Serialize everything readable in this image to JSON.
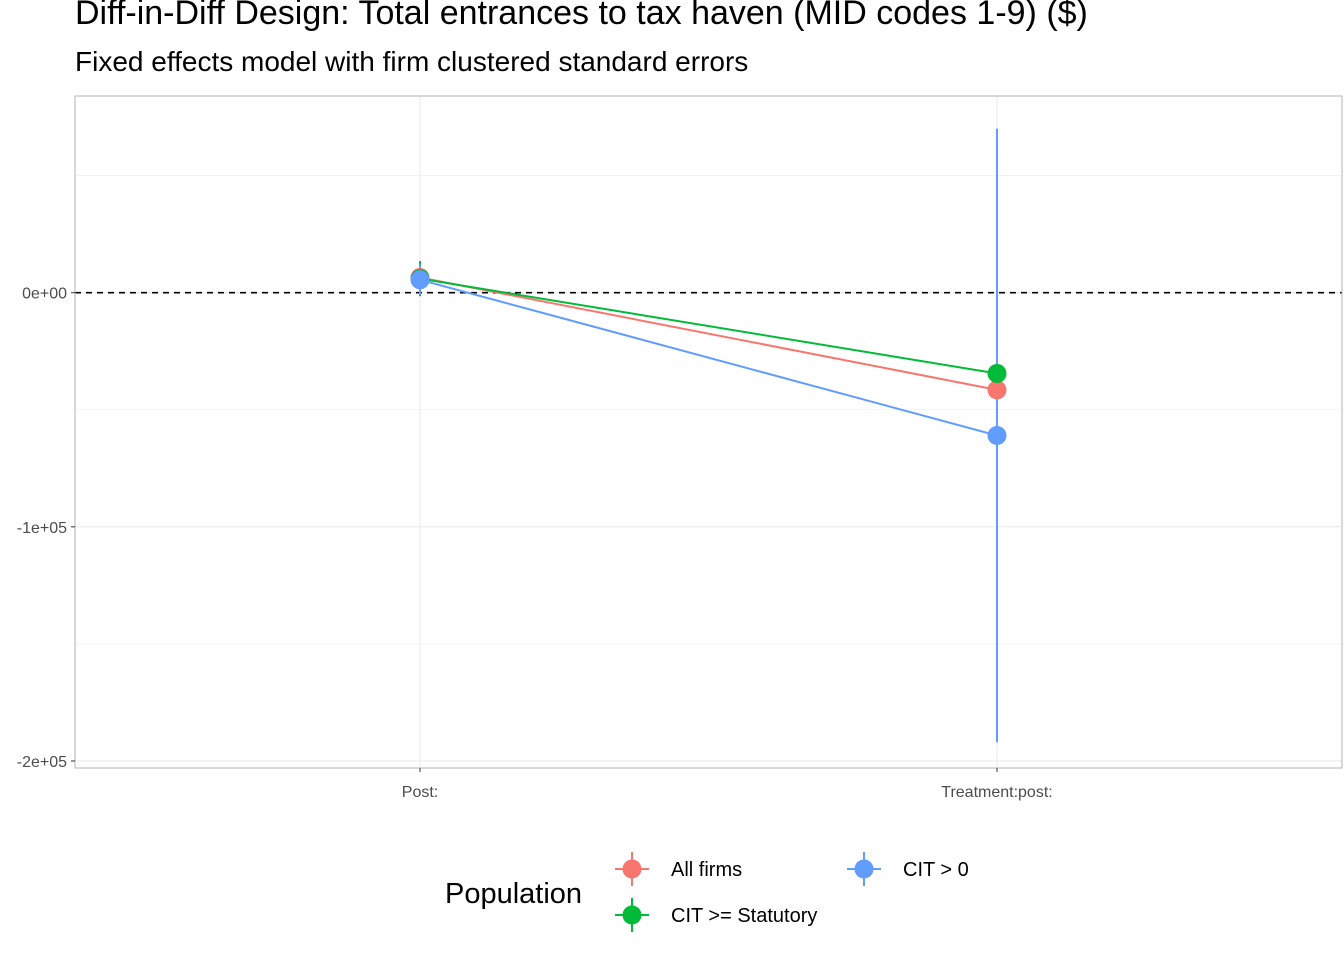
{
  "chart_data": {
    "type": "scatter",
    "title": "Diff-in-Diff Design: Total entrances to tax haven (MID codes 1-9)  ($)",
    "subtitle": "Fixed effects model with firm clustered standard errors",
    "xlabel": "",
    "ylabel": "",
    "categories": [
      "Post:",
      "Treatment:post:"
    ],
    "y_ticks": [
      {
        "value": 0,
        "label": "0e+00"
      },
      {
        "value": -100000,
        "label": "-1e+05"
      },
      {
        "value": -200000,
        "label": "-2e+05"
      }
    ],
    "ylim": [
      -203000,
      84000
    ],
    "grid": true,
    "reference_line": {
      "y": 0,
      "style": "dashed",
      "color": "#000000"
    },
    "legend": {
      "title": "Population",
      "position": "bottom"
    },
    "series": [
      {
        "name": "All firms",
        "color": "#F8766D",
        "values": [
          6500,
          -41500
        ],
        "ci_low": [
          600,
          -41500
        ],
        "ci_high": [
          12400,
          -41500
        ]
      },
      {
        "name": "CIT >= Statutory",
        "color": "#00BA38",
        "values": [
          6000,
          -34500
        ],
        "ci_low": [
          -1500,
          -34500
        ],
        "ci_high": [
          13500,
          -34500
        ]
      },
      {
        "name": "CIT > 0",
        "color": "#619CFF",
        "values": [
          5500,
          -61000
        ],
        "ci_low": [
          -1000,
          -192000
        ],
        "ci_high": [
          12000,
          70000
        ]
      }
    ]
  }
}
